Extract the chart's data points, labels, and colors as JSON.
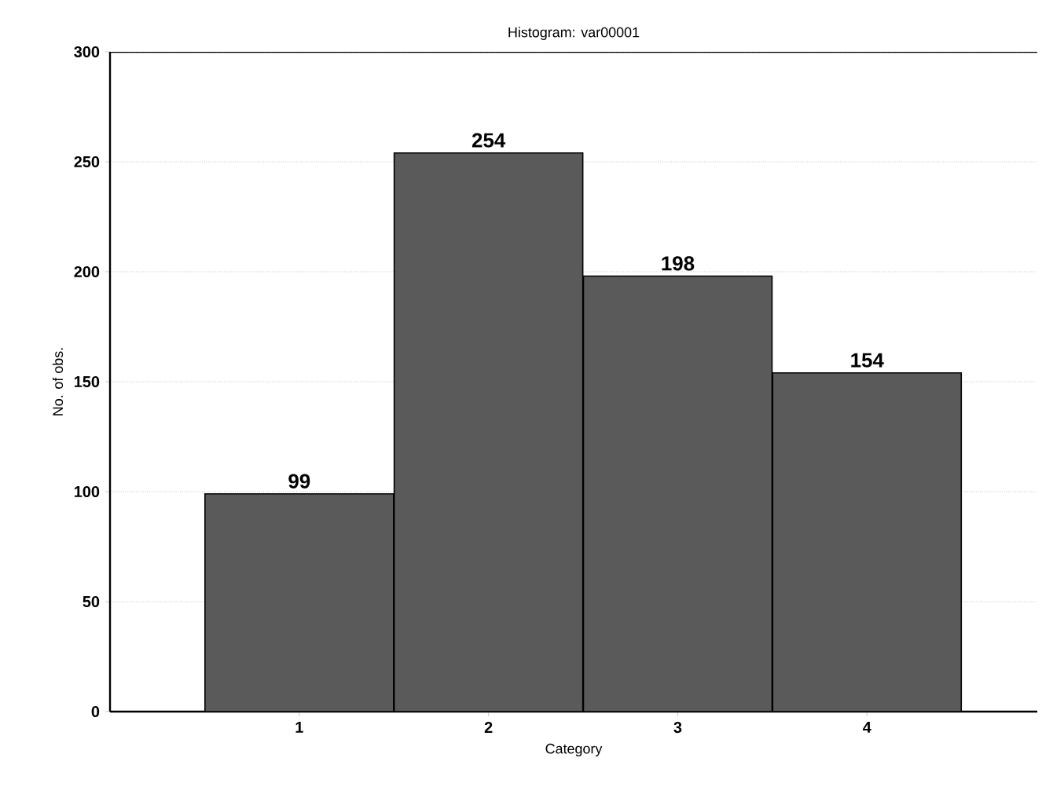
{
  "chart_data": {
    "type": "bar",
    "title": "Histogram: var00001",
    "xlabel": "Category",
    "ylabel": "No. of obs.",
    "categories": [
      "1",
      "2",
      "3",
      "4"
    ],
    "values": [
      99,
      254,
      198,
      154
    ],
    "color": "#5a5a5a",
    "data_labels": true,
    "grid": "y",
    "ylim": [
      0,
      300
    ],
    "yticks": [
      0,
      50,
      100,
      150,
      200,
      250,
      300
    ]
  }
}
